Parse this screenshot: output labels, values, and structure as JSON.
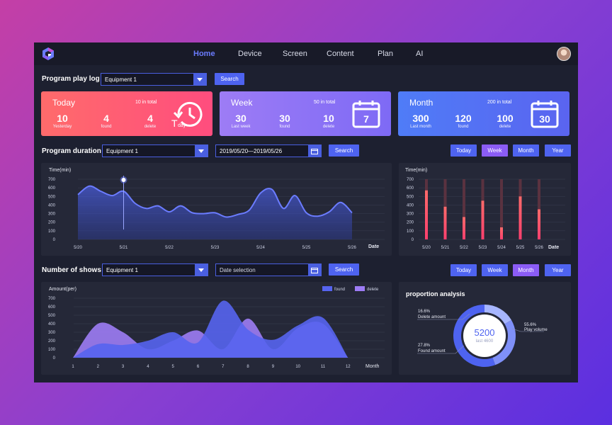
{
  "nav": {
    "items": [
      {
        "label": "Home",
        "active": true
      },
      {
        "label": "Device",
        "active": false
      },
      {
        "label": "Screen",
        "active": false
      },
      {
        "label": "Content",
        "active": false
      },
      {
        "label": "Plan",
        "active": false
      },
      {
        "label": "AI",
        "active": false
      }
    ]
  },
  "play_log": {
    "title": "Program play log",
    "select_value": "Equipment 1",
    "search_label": "Search",
    "cards": [
      {
        "title": "Today",
        "total": "10 in total",
        "icon": "today-history-icon",
        "icon_text": "day",
        "stats": [
          {
            "value": "10",
            "label": "Yesterday"
          },
          {
            "value": "4",
            "label": "found"
          },
          {
            "value": "4",
            "label": "delete"
          }
        ]
      },
      {
        "title": "Week",
        "total": "50 in total",
        "icon": "calendar-icon",
        "icon_text": "7",
        "stats": [
          {
            "value": "30",
            "label": "Last week"
          },
          {
            "value": "30",
            "label": "found"
          },
          {
            "value": "10",
            "label": "delete"
          }
        ]
      },
      {
        "title": "Month",
        "total": "200 in total",
        "icon": "calendar-icon",
        "icon_text": "30",
        "stats": [
          {
            "value": "300",
            "label": "Last month"
          },
          {
            "value": "120",
            "label": "found"
          },
          {
            "value": "100",
            "label": "delete"
          }
        ]
      }
    ]
  },
  "duration": {
    "title": "Program duration",
    "select_value": "Equipment 1",
    "date_value": "2019/05/20—2019/05/26",
    "search_label": "Search",
    "period_buttons": [
      {
        "label": "Today",
        "active": false
      },
      {
        "label": "Week",
        "active": true
      },
      {
        "label": "Month",
        "active": false
      },
      {
        "label": "Year",
        "active": false
      }
    ]
  },
  "shows": {
    "title": "Number of shows",
    "select_value": "Equipment 1",
    "date_placeholder": "Date selection",
    "search_label": "Search",
    "period_buttons": [
      {
        "label": "Today",
        "active": false
      },
      {
        "label": "Week",
        "active": false
      },
      {
        "label": "Month",
        "active": true
      },
      {
        "label": "Year",
        "active": false
      }
    ]
  },
  "proportion": {
    "title": "proportion analysis",
    "center_value": "5200",
    "center_label": "last 4600",
    "items": [
      {
        "percent": "16.6%",
        "label": "Delete amount"
      },
      {
        "percent": "27.8%",
        "label": "Found amount"
      },
      {
        "percent": "55.6%",
        "label": "Play volume"
      }
    ]
  },
  "colors": {
    "accent": "#4e63f0",
    "purple": "#8b5cf6",
    "bar": "#ff5a6e"
  },
  "chart_data": [
    {
      "type": "area",
      "ylabel": "Time(min)",
      "xlabel": "Date",
      "yticks": [
        0,
        100,
        200,
        300,
        400,
        500,
        600,
        700
      ],
      "categories": [
        "5/20",
        "5/21",
        "5/22",
        "5/23",
        "5/24",
        "5/25",
        "5/26"
      ],
      "x": [
        0,
        0.25,
        0.5,
        0.75,
        1,
        1.25,
        1.5,
        1.75,
        2,
        2.25,
        2.5,
        2.75,
        3,
        3.25,
        3.5,
        3.75,
        4,
        4.25,
        4.5,
        4.75,
        5,
        5.25,
        5.5,
        5.75,
        6
      ],
      "values": [
        520,
        620,
        560,
        510,
        560,
        420,
        360,
        390,
        320,
        390,
        310,
        300,
        310,
        260,
        290,
        340,
        540,
        580,
        360,
        510,
        310,
        270,
        320,
        430,
        310
      ],
      "ylim": [
        0,
        700
      ],
      "highlight": {
        "category": "5/21",
        "value": 560
      }
    },
    {
      "type": "bar",
      "ylabel": "Time(min)",
      "xlabel": "Date",
      "yticks": [
        0,
        100,
        200,
        300,
        400,
        500,
        600,
        700
      ],
      "categories": [
        "5/20",
        "5/21",
        "5/22",
        "5/23",
        "5/24",
        "5/25",
        "5/26"
      ],
      "values": [
        570,
        380,
        260,
        450,
        140,
        500,
        350
      ],
      "background": 700,
      "ylim": [
        0,
        700
      ]
    },
    {
      "type": "area",
      "ylabel": "Amount(per)",
      "xlabel": "Month",
      "yticks": [
        0,
        100,
        200,
        300,
        400,
        500,
        600,
        700
      ],
      "categories": [
        "1",
        "2",
        "3",
        "4",
        "5",
        "6",
        "7",
        "8",
        "9",
        "10",
        "11",
        "12"
      ],
      "series": [
        {
          "name": "found",
          "color": "#5664f0",
          "values": [
            0,
            160,
            150,
            200,
            300,
            180,
            670,
            330,
            210,
            380,
            470,
            0
          ]
        },
        {
          "name": "delete",
          "color": "#9d7cf5",
          "values": [
            0,
            400,
            300,
            100,
            200,
            320,
            100,
            460,
            100,
            350,
            400,
            0
          ]
        }
      ],
      "ylim": [
        0,
        700
      ]
    },
    {
      "type": "pie",
      "labels": [
        "Delete amount",
        "Found amount",
        "Play volume"
      ],
      "values": [
        16.6,
        27.8,
        55.6
      ]
    }
  ]
}
